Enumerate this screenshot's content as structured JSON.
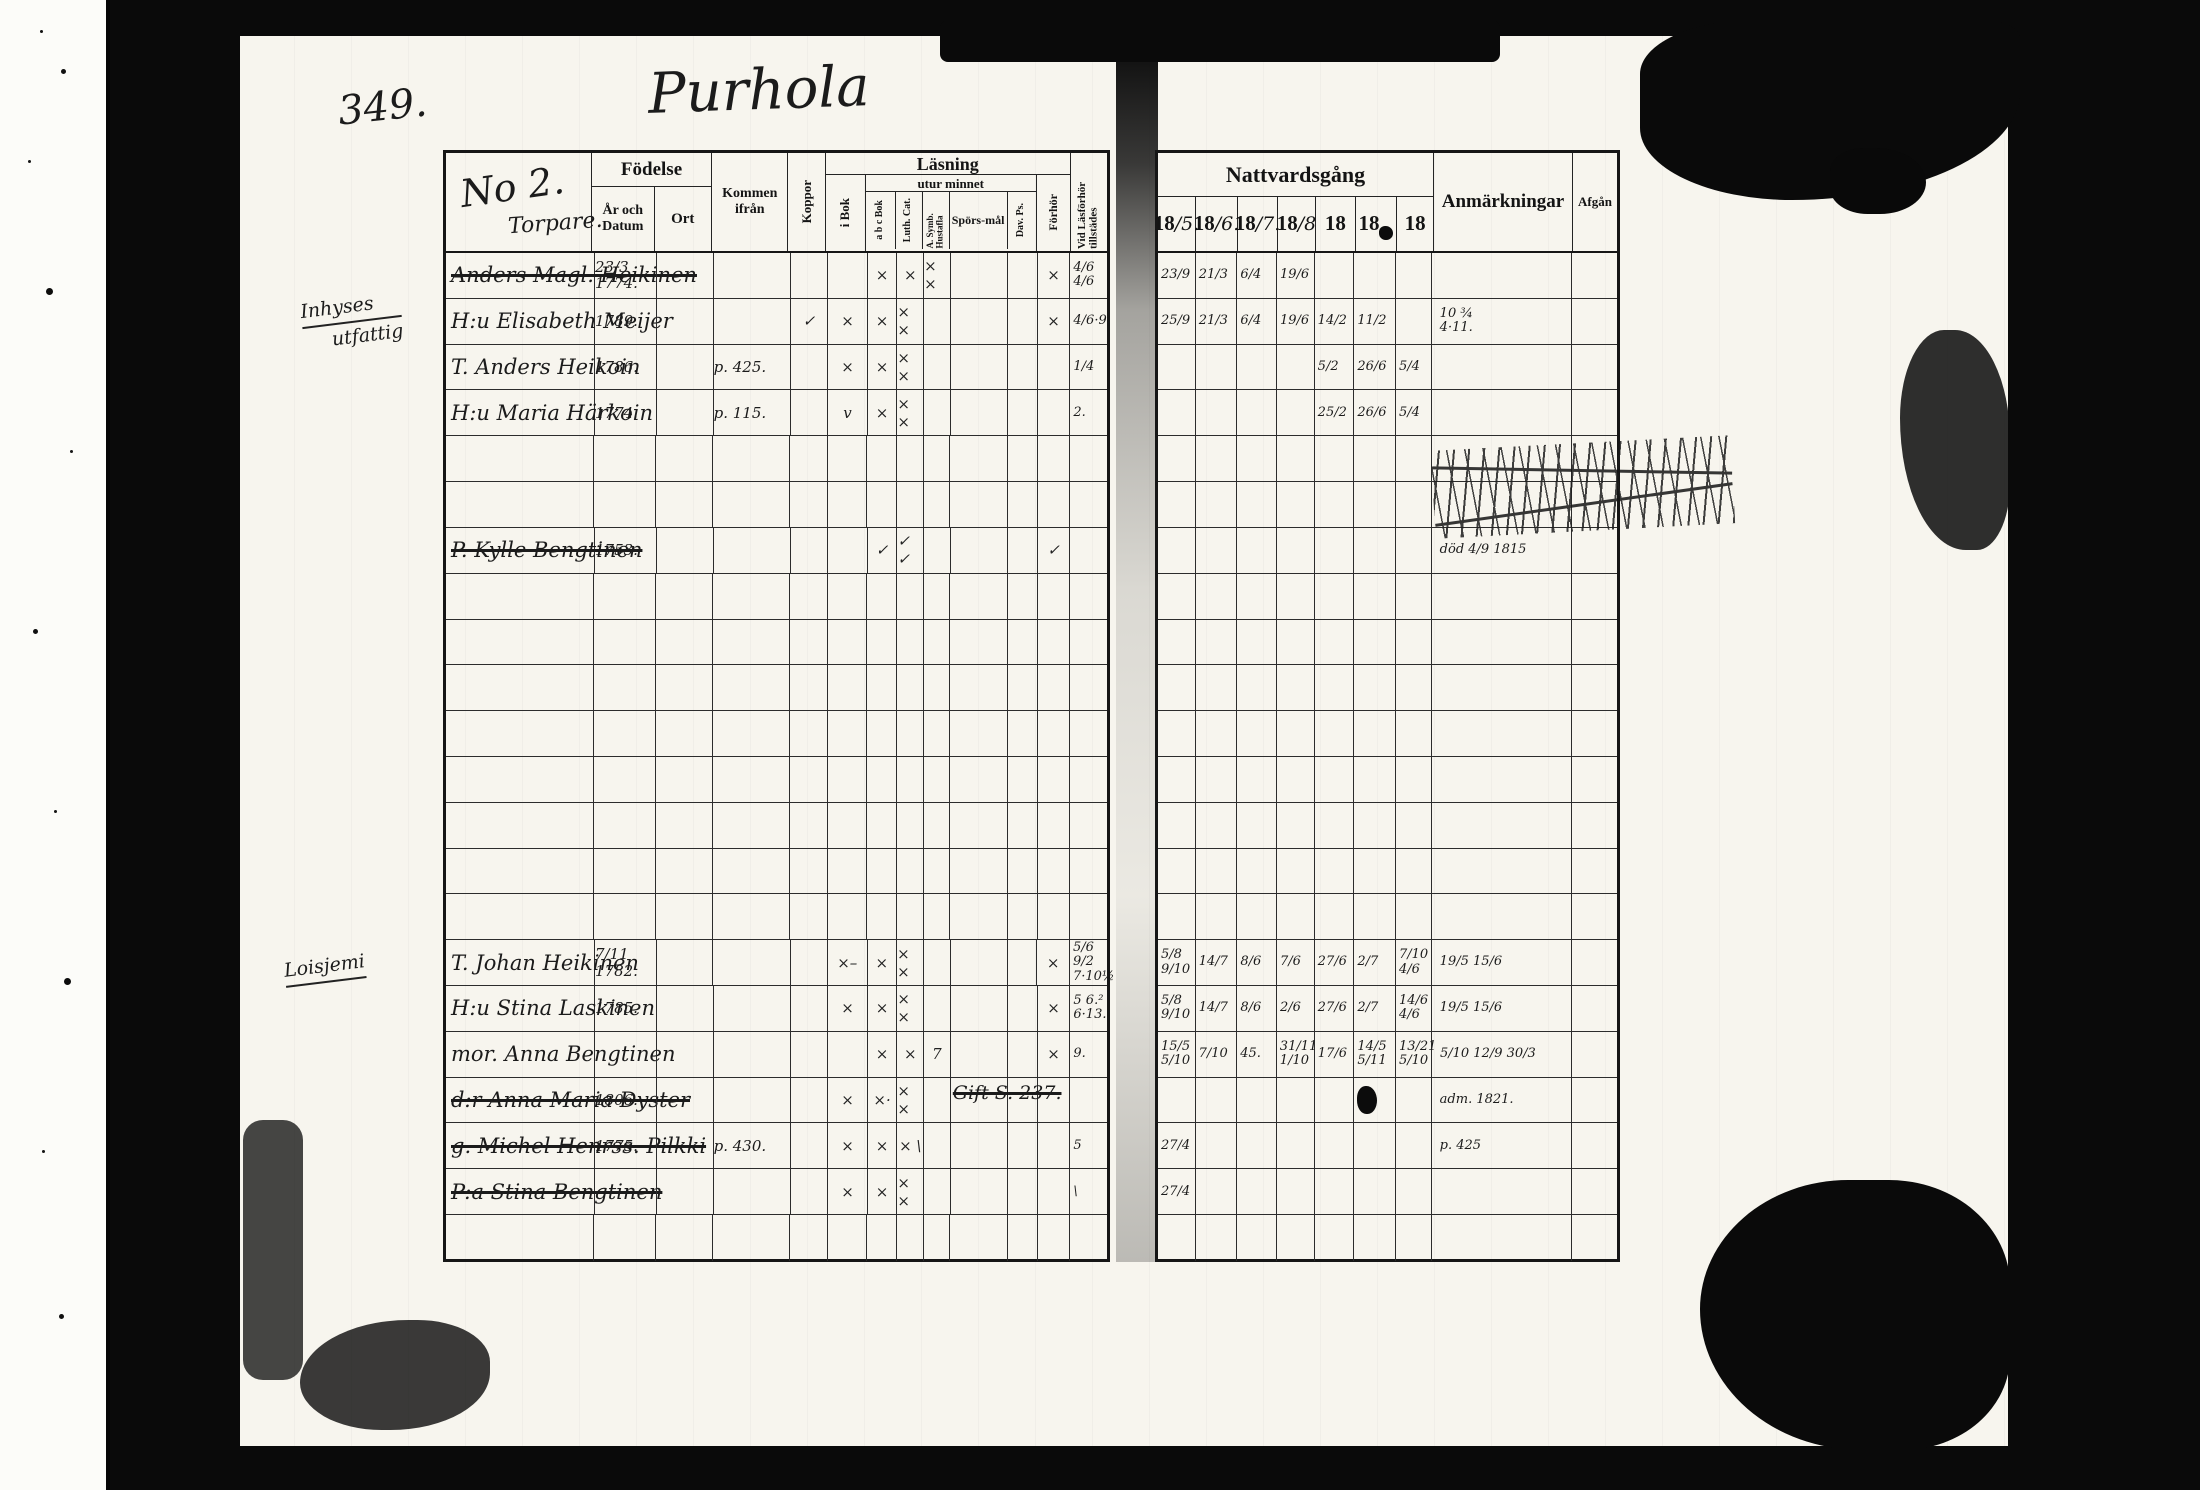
{
  "scan": {
    "page_number": "349.",
    "title": "Purhola"
  },
  "margin_notes": {
    "a1": "Inhyses",
    "a2": "utfattig",
    "b1": "Loisjemi"
  },
  "left_table": {
    "header": {
      "household_no": "No 2.",
      "household_type": "Torpare.",
      "fodelse": "Födelse",
      "ar_och_datum": "År och Datum",
      "ort": "Ort",
      "kommen_ifran": "Kommen ifrån",
      "koppor": "Koppor",
      "lasning": "Läsning",
      "i_bok": "i Bok",
      "utur_minnet": "utur minnet",
      "abc_bok": "a b c Bok",
      "luth_cat": "Luth. Cat.",
      "symb_hustafla": "A. Symb. Hustafla",
      "sporsmal": "Spörs-mål",
      "dav_ps": "Dav. Ps.",
      "forhor": "Förhör",
      "vid_lasforhor": "Vid Läsförhör tillstädes"
    }
  },
  "right_table": {
    "header": {
      "nattvardsgang": "Nattvardsgång",
      "date_columns": [
        {
          "p": "18",
          "h": "/5."
        },
        {
          "p": "18",
          "h": "/6."
        },
        {
          "p": "18",
          "h": "/7."
        },
        {
          "p": "18",
          "h": "/8"
        },
        {
          "p": "18",
          "h": ""
        },
        {
          "p": "18",
          "h": ""
        },
        {
          "p": "18",
          "h": ""
        }
      ],
      "anmarkningar": "Anmärkningar",
      "afgan": "Afgån"
    }
  },
  "rows": [
    {
      "name": "Anders Magl. Heikinen",
      "struck": true,
      "birth": "23/3 1774.",
      "las": [
        "",
        "×",
        "×",
        "× ×",
        "",
        "",
        "×"
      ],
      "vid": "4/6\n4/6",
      "natt": [
        "23/9",
        "21/3",
        "6/4",
        "19/6",
        "",
        "",
        ""
      ],
      "anm": ""
    },
    {
      "name": "H:u Elisabeth Meijer",
      "birth": "1789.",
      "koppor": "✓",
      "las": [
        "×",
        "×",
        "× ×",
        "",
        "",
        "",
        "×"
      ],
      "vid": "4/6·9",
      "natt": [
        "25/9",
        "21/3",
        "6/4",
        "19/6",
        "14/2",
        "11/2",
        ""
      ],
      "anm": "10 ¾\n4·11."
    },
    {
      "name": "T. Anders Heikoin",
      "birth": "1786.",
      "kommen": "p. 425.",
      "las": [
        "×",
        "×",
        "× ×",
        "",
        "",
        "",
        ""
      ],
      "vid": "1/4",
      "natt": [
        "",
        "",
        "",
        "",
        "5/2",
        "26/6",
        "5/4"
      ],
      "anm": "",
      "anm_scribble": true
    },
    {
      "name": "H:u Maria Härkoin",
      "birth": "1774.",
      "kommen": "p. 115.",
      "las": [
        "v",
        "×",
        "× ×",
        "",
        "",
        "",
        ""
      ],
      "vid": "2.",
      "natt": [
        "",
        "",
        "",
        "",
        "25/2",
        "26/6",
        "5/4"
      ],
      "anm": ""
    },
    {},
    {},
    {
      "name": "P. Kylle Bengtinen",
      "struck": true,
      "birth": "1753.",
      "las": [
        "",
        "✓",
        "✓ ✓",
        "",
        "",
        "",
        "✓"
      ],
      "vid": "",
      "natt": [
        "",
        "",
        "",
        "",
        "",
        "",
        ""
      ],
      "anm": "död 4/9 1815"
    },
    {},
    {},
    {},
    {},
    {},
    {},
    {},
    {},
    {
      "name": "T. Johan Heikinen",
      "birth": "7/11 1782.",
      "las": [
        "×–",
        "×",
        "× ×",
        "",
        "",
        "",
        "×"
      ],
      "vid": "5/6 9/2\n7·10½",
      "natt": [
        "5/8 9/10",
        "14/7",
        "8/6",
        "7/6",
        "27/6",
        "2/7",
        "7/10 4/6"
      ],
      "anm": "19/5 15/6"
    },
    {
      "name": "H:u Stina Laskinen",
      "birth": "1785.",
      "las": [
        "×",
        "×",
        "× ×",
        "",
        "",
        "",
        "×"
      ],
      "vid": "5 6.²\n6·13.",
      "natt": [
        "5/8 9/10",
        "14/7",
        "8/6",
        "2/6",
        "27/6",
        "2/7",
        "14/6 4/6"
      ],
      "anm": "19/5 15/6"
    },
    {
      "name": "mor. Anna Bengtinen",
      "birth": "",
      "las": [
        "",
        "×",
        "×",
        "7",
        "",
        "",
        "×"
      ],
      "vid": "9.",
      "natt": [
        "15/5 5/10",
        "7/10",
        "45.",
        "31/11 1/10",
        "17/6",
        "14/5 5/11",
        "13/21 5/10"
      ],
      "anm": "5/10 12/9 30/3"
    },
    {
      "name": "d:r Anna Maria Dyster",
      "struck": true,
      "birth": "1806.",
      "las": [
        "×",
        "×·",
        "× ×",
        "",
        "",
        "",
        ""
      ],
      "vid": "",
      "note_over": "Gift S. 237.",
      "natt": [
        "",
        "",
        "",
        "",
        "",
        "●",
        ""
      ],
      "anm": "adm. 1821."
    },
    {
      "name": "g. Michel Henrss. Pilkki",
      "struck": true,
      "birth": "1775.",
      "kommen": "p. 430.",
      "las": [
        "×",
        "×",
        "× \\",
        "",
        "",
        "",
        ""
      ],
      "vid": "5",
      "natt": [
        "27/4",
        "",
        "",
        "",
        "",
        "",
        ""
      ],
      "anm": "p. 425"
    },
    {
      "name": "P:a Stina Bengtinen",
      "struck": true,
      "birth": "",
      "las": [
        "×",
        "×",
        "× ×",
        "",
        "",
        "",
        ""
      ],
      "vid": "\\",
      "natt": [
        "27/4",
        "",
        "",
        "",
        "",
        "",
        ""
      ],
      "anm": ""
    },
    {}
  ]
}
